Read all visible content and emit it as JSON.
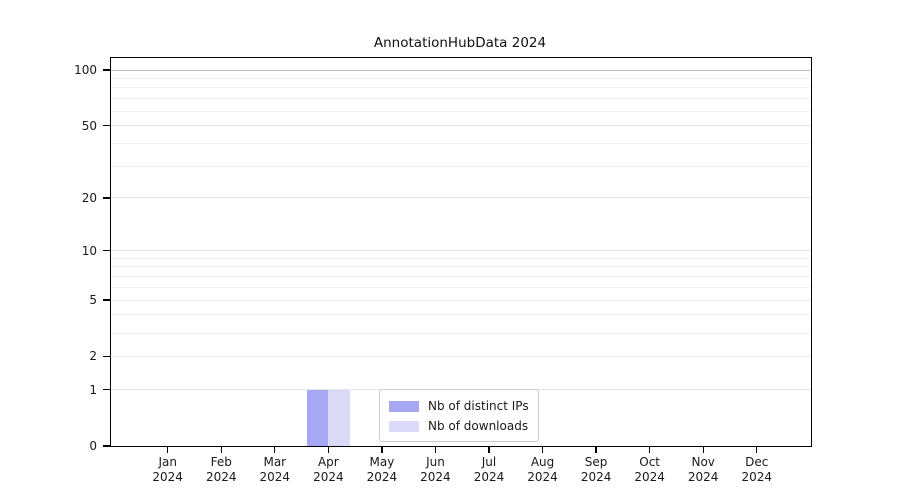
{
  "chart_data": {
    "type": "bar",
    "title": "AnnotationHubData 2024",
    "categories": [
      "Jan",
      "Feb",
      "Mar",
      "Apr",
      "May",
      "Jun",
      "Jul",
      "Aug",
      "Sep",
      "Oct",
      "Nov",
      "Dec"
    ],
    "category_year": "2024",
    "series": [
      {
        "name": "Nb of distinct IPs",
        "color": "#a7a7f4",
        "values": [
          0,
          0,
          0,
          1,
          0,
          0,
          0,
          0,
          0,
          0,
          0,
          0
        ]
      },
      {
        "name": "Nb of downloads",
        "color": "#dadaf8",
        "values": [
          0,
          0,
          0,
          1,
          0,
          0,
          0,
          0,
          0,
          0,
          0,
          0
        ]
      }
    ],
    "yaxis": {
      "scale": "log1p",
      "major_ticks": [
        0,
        1,
        2,
        5,
        10,
        20,
        50,
        100
      ],
      "minor_gridlines": [
        3,
        4,
        6,
        7,
        8,
        9,
        30,
        40,
        60,
        70,
        80,
        90
      ],
      "top_value": 100
    },
    "legend": {
      "position": "lower-center"
    },
    "grid": "on"
  },
  "colors": {
    "background": "#ffffff",
    "axis": "#000000",
    "text": "#1a1a1a",
    "grid_minor": "#f0f0f0",
    "grid_major": "#e7e7e7",
    "grid_top": "#c2c2c2",
    "legend_border": "#cccccc"
  }
}
